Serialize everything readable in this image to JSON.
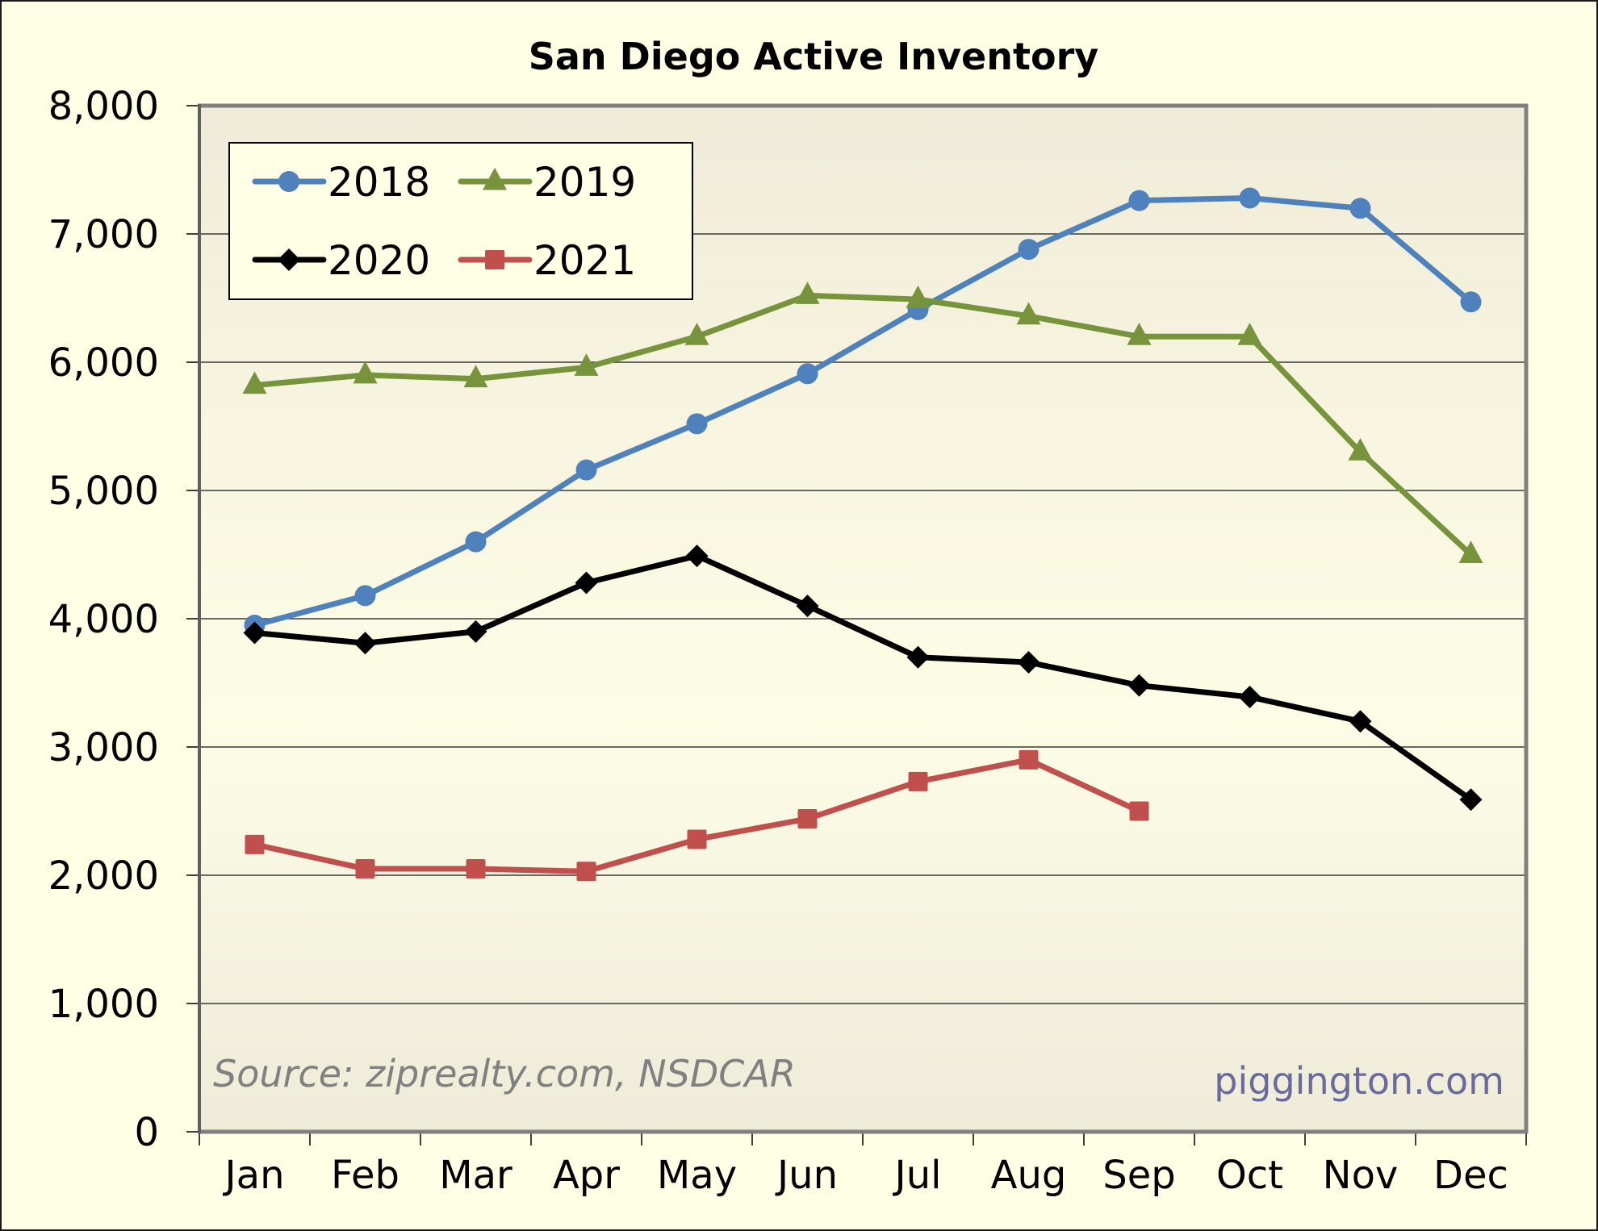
{
  "chart_data": {
    "type": "line",
    "title": "San Diego Active Inventory",
    "xlabel": "",
    "ylabel": "",
    "categories": [
      "Jan",
      "Feb",
      "Mar",
      "Apr",
      "May",
      "Jun",
      "Jul",
      "Aug",
      "Sep",
      "Oct",
      "Nov",
      "Dec"
    ],
    "ylim": [
      0,
      8000
    ],
    "yticks": [
      0,
      1000,
      2000,
      3000,
      4000,
      5000,
      6000,
      7000,
      8000
    ],
    "ytick_labels": [
      "0",
      "1,000",
      "2,000",
      "3,000",
      "4,000",
      "5,000",
      "6,000",
      "7,000",
      "8,000"
    ],
    "grid": true,
    "legend_position": "top-left",
    "series": [
      {
        "name": "2018",
        "color": "#4f81bd",
        "marker": "circle",
        "values": [
          3950,
          4180,
          4600,
          5160,
          5520,
          5910,
          6410,
          6880,
          7260,
          7280,
          7200,
          6470
        ]
      },
      {
        "name": "2019",
        "color": "#77933c",
        "marker": "triangle",
        "values": [
          5820,
          5900,
          5870,
          5960,
          6200,
          6520,
          6490,
          6360,
          6200,
          6200,
          5300,
          4500
        ]
      },
      {
        "name": "2020",
        "color": "#000000",
        "marker": "diamond",
        "values": [
          3890,
          3810,
          3900,
          4280,
          4490,
          4100,
          3700,
          3660,
          3480,
          3390,
          3200,
          2590
        ]
      },
      {
        "name": "2021",
        "color": "#c0504d",
        "marker": "square",
        "values": [
          2240,
          2050,
          2050,
          2030,
          2280,
          2440,
          2730,
          2900,
          2500,
          null,
          null,
          null
        ]
      }
    ],
    "annotations": [
      {
        "text": "Source: ziprealty.com, NSDCAR",
        "position": "bottom-left"
      },
      {
        "text": "piggington.com",
        "position": "bottom-right"
      }
    ]
  }
}
